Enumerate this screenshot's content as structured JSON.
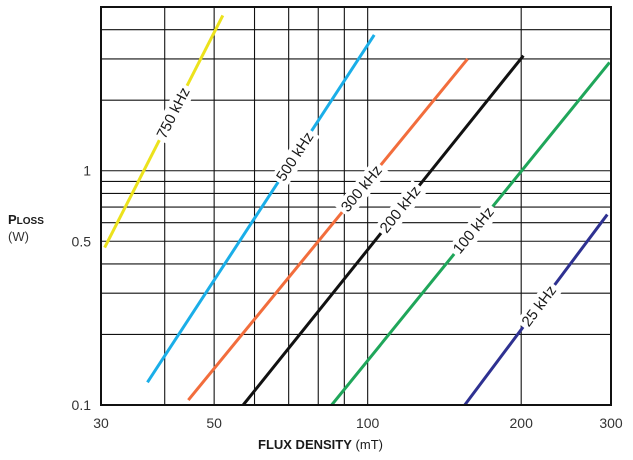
{
  "chart_data": {
    "type": "line",
    "xscale": "log",
    "yscale": "log",
    "xlim": [
      30,
      300
    ],
    "ylim": [
      0.1,
      5
    ],
    "grid": true,
    "xticks": [
      30,
      50,
      100,
      200,
      300
    ],
    "xtick_labels": [
      "30",
      "50",
      "100",
      "200",
      "300"
    ],
    "yticks": [
      0.1,
      0.5,
      1
    ],
    "ytick_labels": [
      "0.1",
      "0.5",
      "1"
    ],
    "ylabel": {
      "main": "P",
      "sub": "LOSS",
      "unit": "(W)"
    },
    "xlabel": {
      "bold": "FLUX DENSITY",
      "unit": "(mT)"
    },
    "series": [
      {
        "name": "750 kHz",
        "color": "#ece21c",
        "x": [
          30.5,
          52
        ],
        "y": [
          0.47,
          4.6
        ]
      },
      {
        "name": "500 kHz",
        "color": "#1aaee8",
        "x": [
          37,
          103
        ],
        "y": [
          0.125,
          3.8
        ]
      },
      {
        "name": "300 kHz",
        "color": "#f26d3c",
        "x": [
          44.5,
          157
        ],
        "y": [
          0.105,
          3.0
        ]
      },
      {
        "name": "200 kHz",
        "color": "#111111",
        "x": [
          57,
          202
        ],
        "y": [
          0.1,
          3.1
        ]
      },
      {
        "name": "100 kHz",
        "color": "#1fa65a",
        "x": [
          85,
          298
        ],
        "y": [
          0.1,
          2.9
        ]
      },
      {
        "name": "25 kHz",
        "color": "#2e3191",
        "x": [
          155,
          295
        ],
        "y": [
          0.1,
          0.65
        ]
      }
    ]
  }
}
